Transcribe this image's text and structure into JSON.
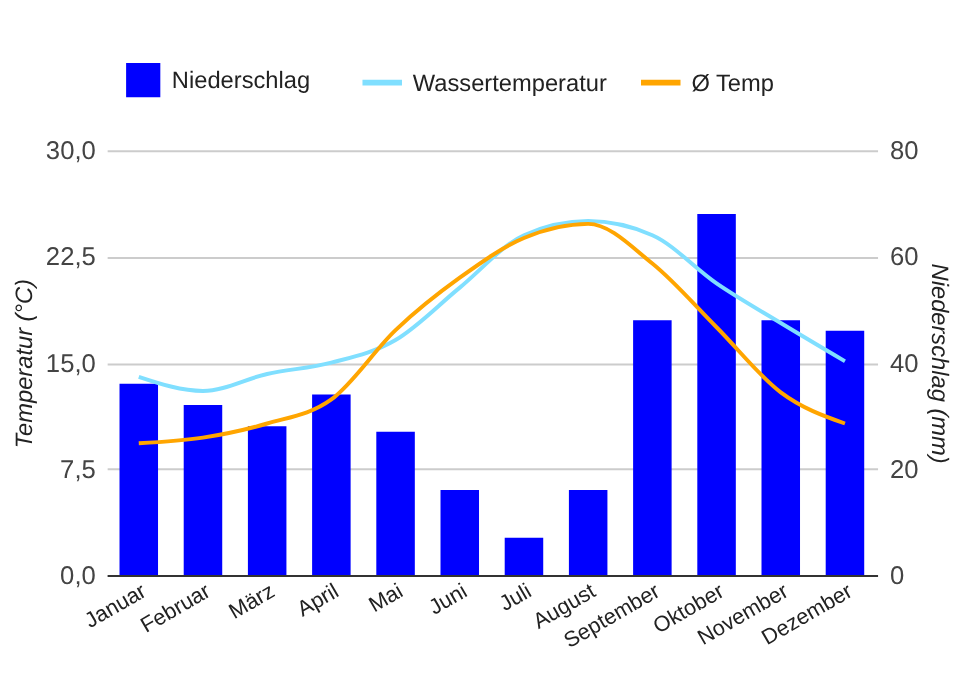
{
  "chart_data": {
    "type": "bar",
    "categories": [
      "Januar",
      "Februar",
      "März",
      "April",
      "Mai",
      "Juni",
      "Juli",
      "August",
      "September",
      "Oktober",
      "November",
      "Dezember"
    ],
    "series": [
      {
        "name": "Niederschlag",
        "axis": "y2",
        "color": "#0000ff",
        "values": [
          36,
          32,
          28,
          34,
          27,
          16,
          7,
          16,
          48,
          68,
          48,
          46
        ]
      },
      {
        "name": "Wassertemperatur",
        "type": "line",
        "color": "#80dfff",
        "values": [
          14.0,
          13.0,
          14.2,
          15.0,
          16.6,
          20.3,
          24.0,
          25.0,
          24.0,
          20.6,
          17.8,
          15.1
        ]
      },
      {
        "name": "Ø Temp",
        "type": "line",
        "color": "#ffa500",
        "values": [
          9.3,
          9.7,
          10.7,
          12.4,
          17.3,
          21.0,
          23.8,
          24.8,
          22.0,
          17.5,
          12.9,
          10.7
        ]
      }
    ],
    "ylabel": "Temperatur (°C)",
    "y2label": "Niederschlag (mm)",
    "ylim": [
      0,
      30
    ],
    "yticks": [
      {
        "value": 0,
        "label": "0,0"
      },
      {
        "value": 7.5,
        "label": "7,5"
      },
      {
        "value": 15,
        "label": "15,0"
      },
      {
        "value": 22.5,
        "label": "22,5"
      },
      {
        "value": 30,
        "label": "30,0"
      }
    ],
    "y2lim": [
      0,
      80
    ],
    "y2ticks": [
      0,
      20,
      40,
      60,
      80
    ],
    "grid": "y",
    "legend": "top"
  }
}
